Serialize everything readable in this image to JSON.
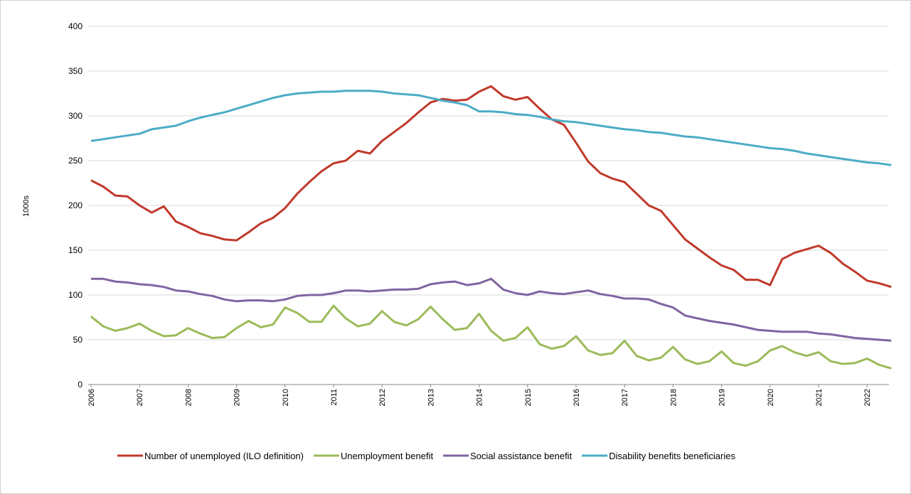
{
  "chart_data": {
    "type": "line",
    "y_label": "1000s",
    "categories": [
      "2006",
      null,
      null,
      null,
      "2007",
      null,
      null,
      null,
      "2008",
      null,
      null,
      null,
      "2009",
      null,
      null,
      null,
      "2010",
      null,
      null,
      null,
      "2011",
      null,
      null,
      null,
      "2012",
      null,
      null,
      null,
      "2013",
      null,
      null,
      null,
      "2014",
      null,
      null,
      null,
      "2015",
      null,
      null,
      null,
      "2016",
      null,
      null,
      null,
      "2017",
      null,
      null,
      null,
      "2018",
      null,
      null,
      null,
      "2019",
      null,
      null,
      null,
      "2020",
      null,
      null,
      null,
      "2021",
      null,
      null,
      null,
      "2022",
      null,
      null
    ],
    "ylim": [
      0,
      400
    ],
    "yticks": [
      0,
      50,
      100,
      150,
      200,
      250,
      300,
      350,
      400
    ],
    "grid": true,
    "legend": "bottom",
    "series": [
      {
        "name": "Number of unemployed (ILO definition)",
        "color": "#c0392b",
        "values": [
          228,
          221,
          211,
          210,
          200,
          192,
          199,
          182,
          176,
          169,
          166,
          162,
          161,
          170,
          180,
          186,
          197,
          213,
          226,
          238,
          247,
          250,
          261,
          258,
          272,
          282,
          292,
          304,
          315,
          319,
          317,
          318,
          327,
          333,
          322,
          318,
          321,
          308,
          296,
          290,
          270,
          249,
          236,
          230,
          226,
          213,
          200,
          194,
          178,
          162,
          152,
          142,
          133,
          128,
          117,
          117,
          111,
          140,
          147,
          151,
          155,
          147,
          135,
          126,
          116,
          113,
          109
        ]
      },
      {
        "name": "Unemployment benefit",
        "color": "#9bbb59",
        "values": [
          76,
          65,
          60,
          63,
          68,
          60,
          54,
          55,
          63,
          57,
          52,
          53,
          63,
          71,
          64,
          67,
          86,
          80,
          70,
          70,
          88,
          74,
          65,
          68,
          82,
          70,
          66,
          73,
          87,
          73,
          61,
          63,
          79,
          60,
          49,
          52,
          64,
          45,
          40,
          43,
          54,
          38,
          33,
          35,
          49,
          32,
          27,
          30,
          42,
          28,
          23,
          26,
          37,
          24,
          21,
          26,
          38,
          43,
          36,
          32,
          36,
          26,
          23,
          24,
          29,
          22,
          18
        ]
      },
      {
        "name": "Social assistance benefit",
        "color": "#8064a2",
        "values": [
          118,
          118,
          115,
          114,
          112,
          111,
          109,
          105,
          104,
          101,
          99,
          95,
          93,
          94,
          94,
          93,
          95,
          99,
          100,
          100,
          102,
          105,
          105,
          104,
          105,
          106,
          106,
          107,
          112,
          114,
          115,
          111,
          113,
          118,
          106,
          102,
          100,
          104,
          102,
          101,
          103,
          105,
          101,
          99,
          96,
          96,
          95,
          90,
          86,
          77,
          74,
          71,
          69,
          67,
          64,
          61,
          60,
          59,
          59,
          59,
          57,
          56,
          54,
          52,
          51,
          50,
          49
        ]
      },
      {
        "name": "Disability benefits beneficiaries",
        "color": "#4bacc6",
        "values": [
          272,
          274,
          276,
          278,
          280,
          285,
          287,
          289,
          294,
          298,
          301,
          304,
          308,
          312,
          316,
          320,
          323,
          325,
          326,
          327,
          327,
          328,
          328,
          328,
          327,
          325,
          324,
          323,
          320,
          317,
          315,
          312,
          305,
          305,
          304,
          302,
          301,
          299,
          296,
          294,
          293,
          291,
          289,
          287,
          285,
          284,
          282,
          281,
          279,
          277,
          276,
          274,
          272,
          270,
          268,
          266,
          264,
          263,
          261,
          258,
          256,
          254,
          252,
          250,
          248,
          247,
          245
        ]
      }
    ]
  }
}
